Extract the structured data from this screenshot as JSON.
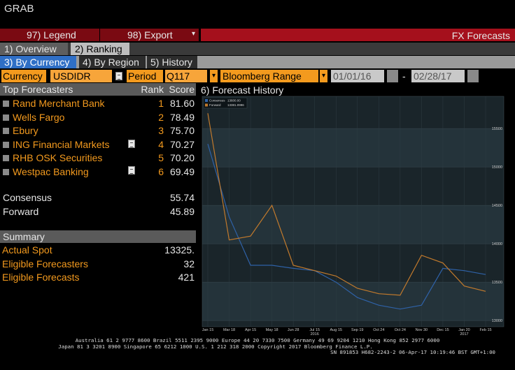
{
  "header": {
    "title": "GRAB"
  },
  "menu": {
    "legend": "97) Legend",
    "export": "98) Export",
    "screen_title": "FX Forecasts"
  },
  "tabs": [
    "1) Overview",
    "2) Ranking"
  ],
  "subtabs": [
    "3) By Currency",
    "4) By Region",
    "5) History"
  ],
  "filters": {
    "currency_label": "Currency",
    "currency": "USDIDR",
    "period_label": "Period",
    "period": "Q117",
    "range": "Bloomberg Range",
    "start": "01/01/16",
    "separator": "-",
    "end": "02/28/17"
  },
  "table": {
    "columns": [
      "Top Forecasters",
      "Rank",
      "Score"
    ],
    "rows": [
      [
        "Rand Merchant Bank",
        "1",
        "81.60"
      ],
      [
        "Wells Fargo",
        "2",
        "78.49"
      ],
      [
        "Ebury",
        "3",
        "75.70"
      ],
      [
        "ING Financial Markets",
        "4",
        "70.27"
      ],
      [
        "RHB OSK Securities",
        "5",
        "70.20"
      ],
      [
        "Westpac Banking",
        "6",
        "69.49"
      ]
    ]
  },
  "aggregates": [
    [
      "Consensus",
      "55.74"
    ],
    [
      "Forward",
      "45.89"
    ]
  ],
  "summary": {
    "title": "Summary",
    "rows": [
      [
        "Actual Spot",
        "13325."
      ],
      [
        "Eligible Forecasters",
        "32"
      ],
      [
        "Eligible Forecasts",
        "421"
      ]
    ]
  },
  "chart_data": {
    "type": "line",
    "title": "6) Forecast History",
    "categories": [
      "Jan 15",
      "Mar 18",
      "Apr 15",
      "May 18",
      "Jun 28",
      "Jul 15",
      "Aug 15",
      "Sep 19",
      "Oct 24",
      "Oct 24",
      "Nov 30",
      "Dec 15",
      "Jan 20",
      "Feb 15"
    ],
    "year_labels": [
      "2016",
      "2017"
    ],
    "series": [
      {
        "name": "Consensus",
        "legend_value": "13600.00",
        "color": "#2f62a8",
        "values": [
          15300,
          14350,
          13720,
          13720,
          13680,
          13650,
          13500,
          13300,
          13200,
          13150,
          13200,
          13680,
          13650,
          13600
        ]
      },
      {
        "name": "Forward",
        "legend_value": "13381.0996",
        "color": "#c27a2c",
        "values": [
          15700,
          14050,
          14100,
          14500,
          13720,
          13650,
          13580,
          13420,
          13350,
          13330,
          13850,
          13750,
          13450,
          13381.0996
        ]
      }
    ],
    "ylim": [
      12920,
      15920
    ],
    "yticks": [
      13000,
      13500,
      14000,
      14500,
      15000,
      15500
    ]
  },
  "footer": {
    "lines": [
      "Australia 61 2 9777 8600 Brazil 5511 2395 9000 Europe 44 20 7330 7500 Germany 49 69 9204 1210 Hong Kong 852 2977 6000",
      "Japan 81 3 3201 8900      Singapore 65 6212 1000      U.S. 1 212 318 2000      Copyright 2017 Bloomberg Finance L.P.",
      "SN 891853 H682-2243-2 06-Apr-17 10:19:46 BST  GMT+1:00"
    ]
  }
}
